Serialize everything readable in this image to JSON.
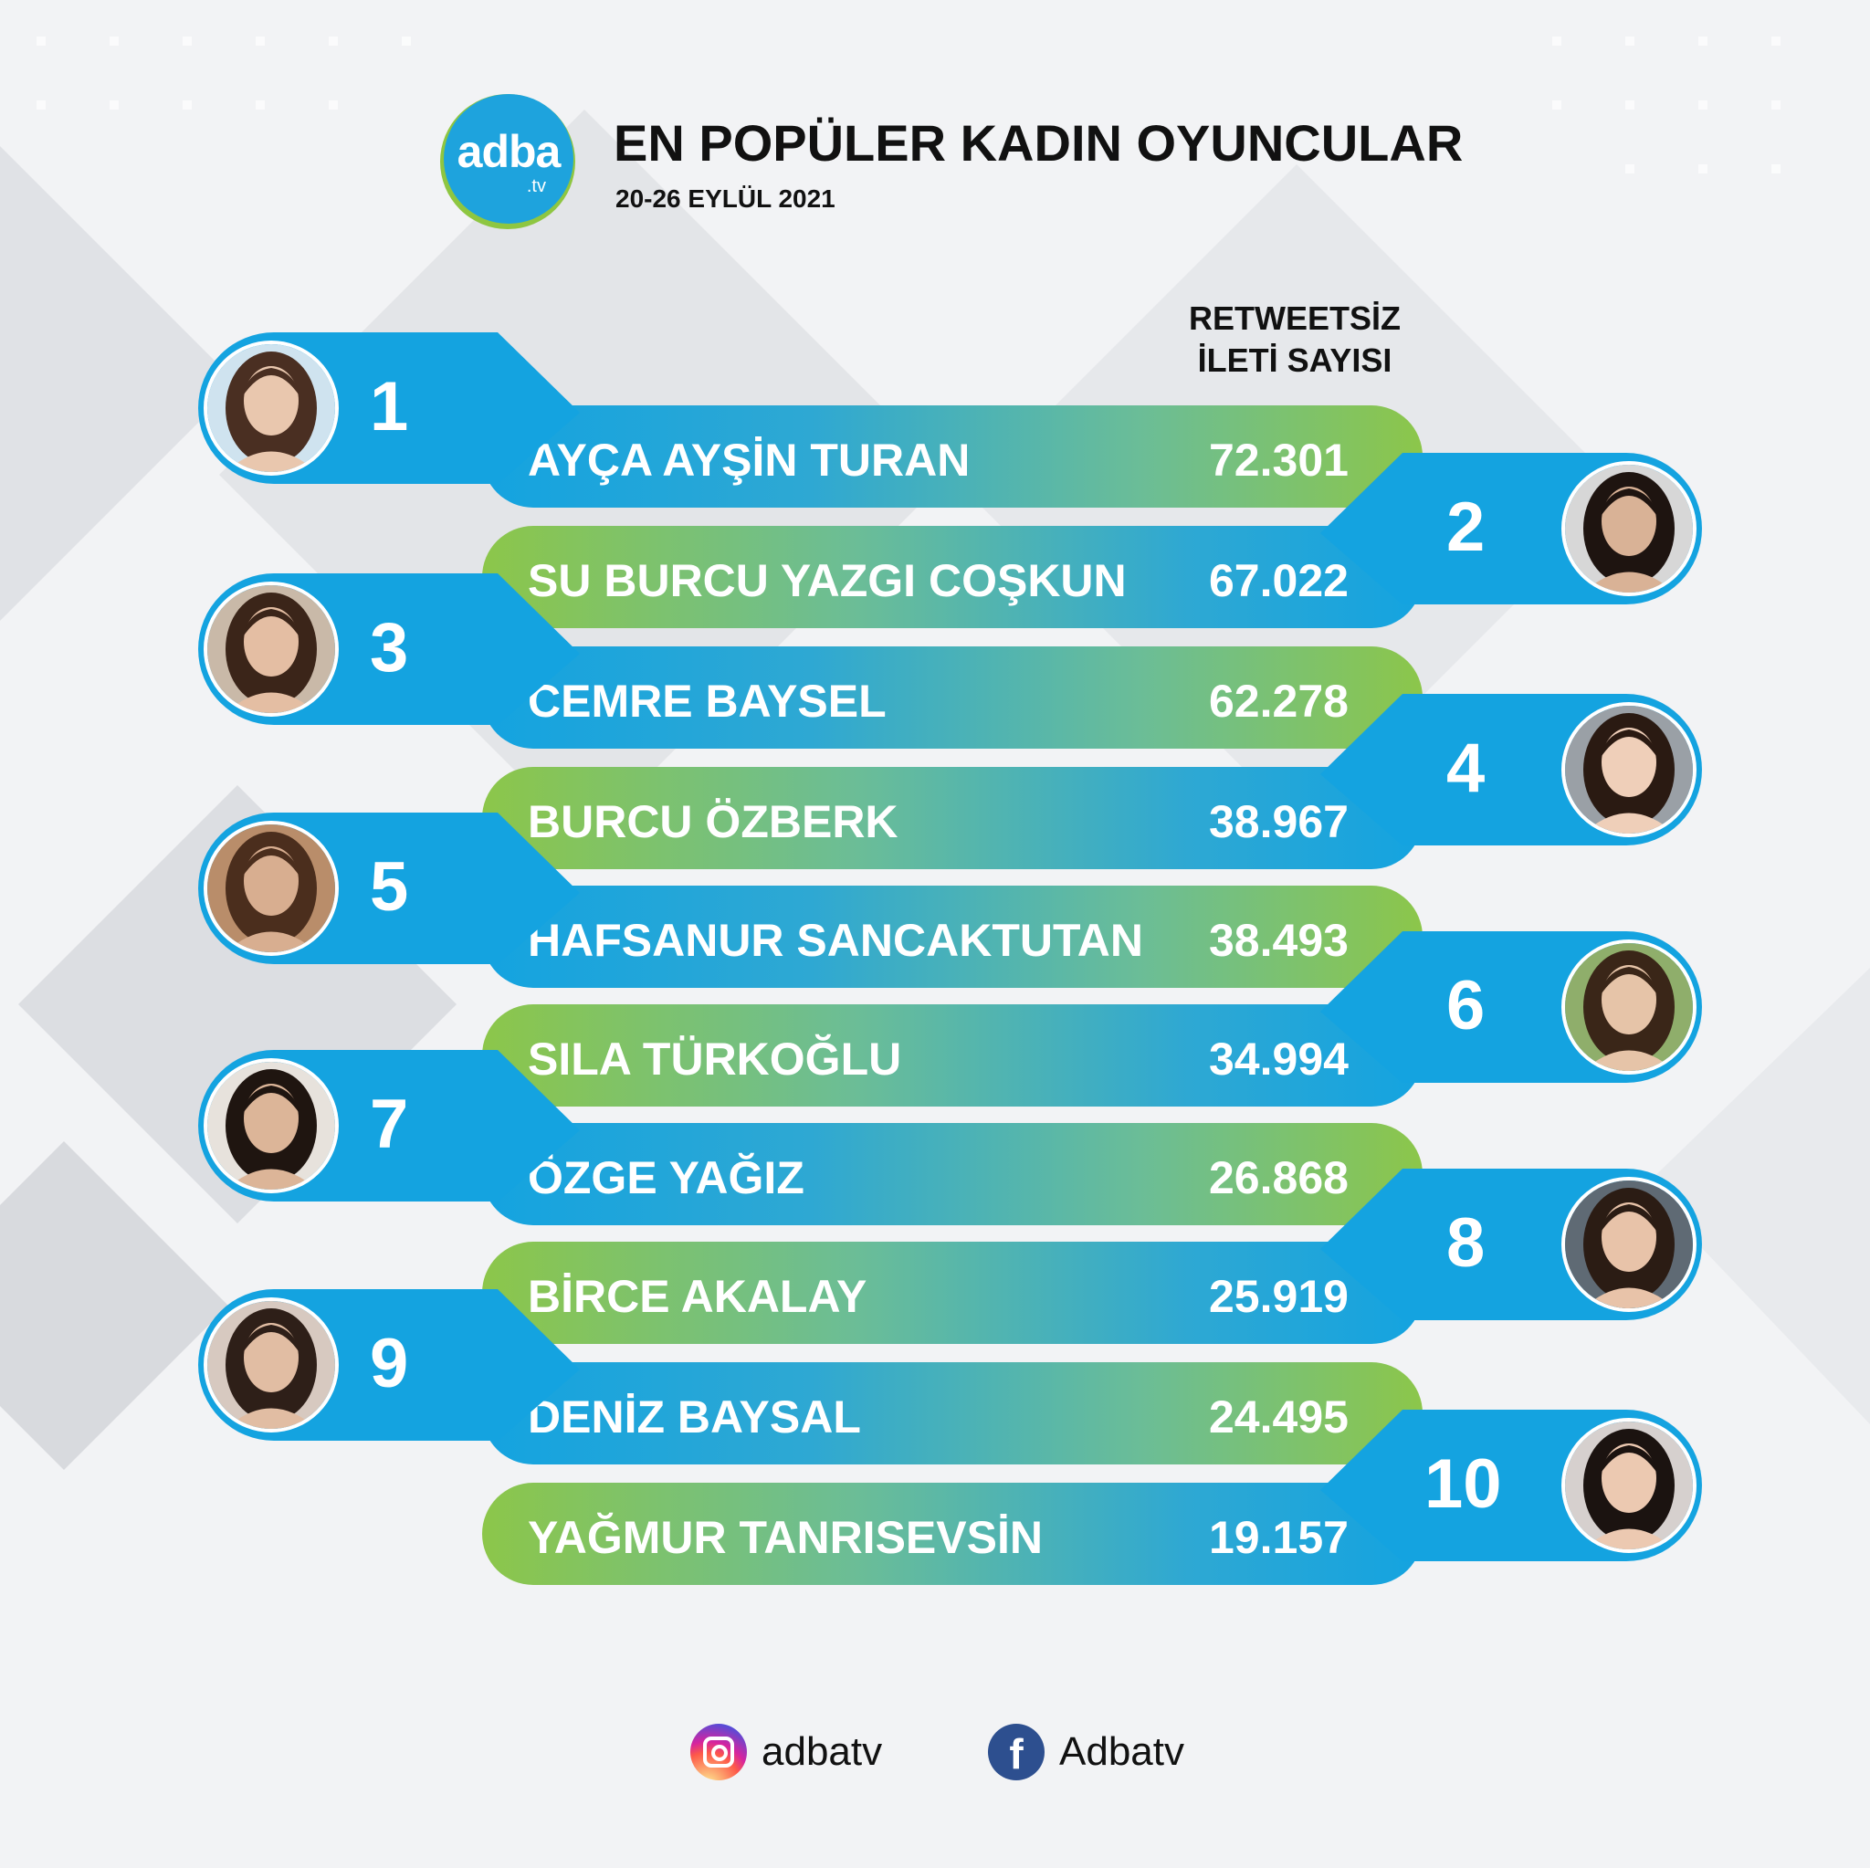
{
  "header": {
    "logo_text": "adba",
    "logo_suffix": ".tv",
    "title": "EN POPÜLER KADIN OYUNCULAR",
    "subtitle": "20-26 EYLÜL 2021"
  },
  "column_header": {
    "line1": "RETWEETSİZ",
    "line2": "İLETİ SAYISI"
  },
  "colors": {
    "blue": "#14a3e0",
    "green": "#8cc64a",
    "logo_ring": "#8ec641",
    "facebook": "#2d4f8f"
  },
  "ranking": [
    {
      "rank": "1",
      "name": "AYÇA AYŞİN TURAN",
      "value": "72.301"
    },
    {
      "rank": "2",
      "name": "SU BURCU YAZGI COŞKUN",
      "value": "67.022"
    },
    {
      "rank": "3",
      "name": "CEMRE BAYSEL",
      "value": "62.278"
    },
    {
      "rank": "4",
      "name": "BURCU ÖZBERK",
      "value": "38.967"
    },
    {
      "rank": "5",
      "name": "HAFSANUR SANCAKTUTAN",
      "value": "38.493"
    },
    {
      "rank": "6",
      "name": "SILA TÜRKOĞLU",
      "value": "34.994"
    },
    {
      "rank": "7",
      "name": "ÖZGE YAĞIZ",
      "value": "26.868"
    },
    {
      "rank": "8",
      "name": "BİRCE AKALAY",
      "value": "25.919"
    },
    {
      "rank": "9",
      "name": "DENİZ BAYSAL",
      "value": "24.495"
    },
    {
      "rank": "10",
      "name": "YAĞMUR TANRISEVSİN",
      "value": "19.157"
    }
  ],
  "footer": {
    "instagram_icon": "instagram-icon",
    "instagram_handle": "adbatv",
    "facebook_icon": "facebook-icon",
    "facebook_letter": "f",
    "facebook_handle": "Adbatv"
  }
}
